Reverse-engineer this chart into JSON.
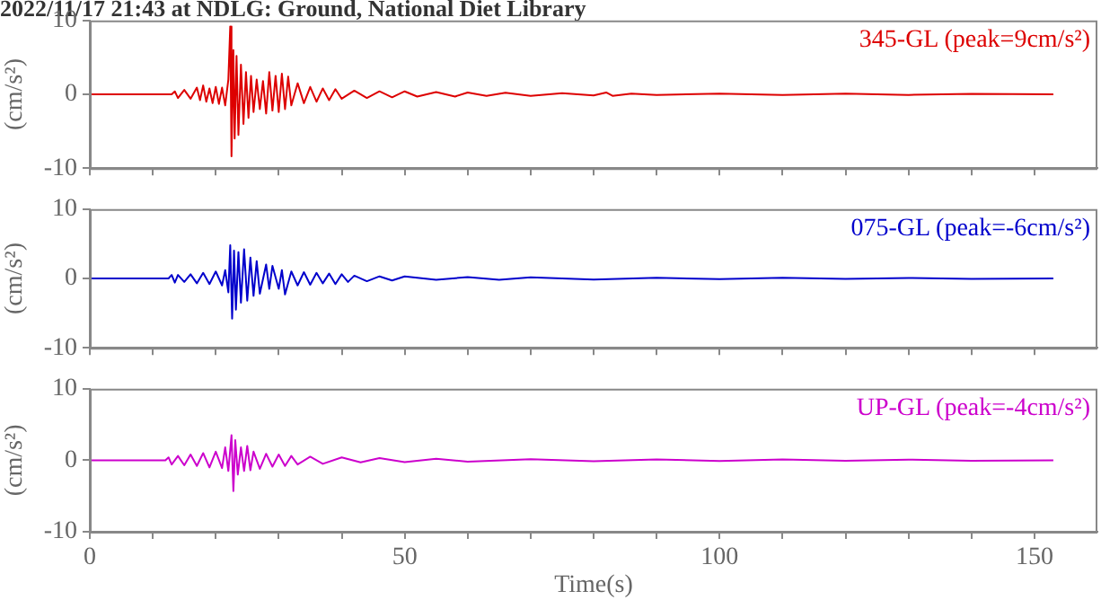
{
  "chart_data": [
    {
      "type": "line",
      "title": "2022/11/17 21:43 at NDLG: Ground, National Diet Library",
      "ylabel": "(cm/s²)",
      "xlim": [
        0,
        160
      ],
      "ylim": [
        -10,
        10
      ],
      "yticks": [
        10,
        0,
        -10
      ],
      "tick_labels": "y",
      "xticks": [
        0,
        {
          "value": 10,
          "label": null
        },
        {
          "value": 20,
          "label": null
        },
        {
          "value": 30,
          "label": null
        },
        {
          "value": 40,
          "label": null
        },
        50,
        {
          "value": 60,
          "label": null
        },
        {
          "value": 70,
          "label": null
        },
        {
          "value": 80,
          "label": null
        },
        {
          "value": 90,
          "label": null
        },
        100,
        {
          "value": 110,
          "label": null
        },
        {
          "value": 120,
          "label": null
        },
        {
          "value": 130,
          "label": null
        },
        {
          "value": 140,
          "label": null
        },
        150
      ],
      "series": [
        {
          "name": "345-GL (peak=9cm/s²)",
          "color": "#dd0000",
          "x": [
            0,
            13,
            13.5,
            14,
            15,
            16,
            17,
            17.5,
            18,
            18.5,
            19,
            19.5,
            20,
            20.5,
            21,
            21.5,
            22,
            22.3,
            22.5,
            22.8,
            23,
            23.3,
            23.6,
            24,
            24.4,
            24.8,
            25.2,
            25.6,
            26,
            26.5,
            27,
            27.5,
            28,
            28.5,
            29,
            29.5,
            30,
            30.5,
            31,
            31.5,
            32,
            33,
            34,
            35,
            36,
            37,
            38,
            39,
            40,
            42,
            44,
            46,
            48,
            50,
            52,
            55,
            58,
            60,
            63,
            66,
            70,
            75,
            80,
            82,
            83,
            86,
            90,
            100,
            110,
            120,
            130,
            140,
            153
          ],
          "values": [
            0,
            0,
            0.4,
            -0.5,
            0.6,
            -0.6,
            0.9,
            -0.8,
            1.2,
            -1.0,
            0.8,
            -1.2,
            1.0,
            -1.3,
            0.9,
            -1.5,
            2,
            9.2,
            -8.4,
            6,
            -6,
            5.2,
            -5.5,
            4,
            -4,
            3,
            -3.2,
            2.5,
            -2.4,
            2,
            -2,
            1.8,
            -2.6,
            3,
            -2.2,
            2.5,
            -2.4,
            2.8,
            -2,
            2.4,
            -1.5,
            1.5,
            -1.2,
            1.0,
            -1.0,
            0.8,
            -0.8,
            0.7,
            -0.6,
            0.5,
            -0.5,
            0.4,
            -0.4,
            0.4,
            -0.3,
            0.3,
            -0.3,
            0.25,
            -0.2,
            0.2,
            -0.2,
            0.15,
            -0.15,
            0.25,
            -0.2,
            0.1,
            -0.1,
            0.1,
            -0.1,
            0.08,
            -0.08,
            0.07,
            0
          ]
        }
      ]
    },
    {
      "type": "line",
      "ylabel": "(cm/s²)",
      "xlim": [
        0,
        160
      ],
      "ylim": [
        -10,
        10
      ],
      "yticks": [
        10,
        0,
        -10
      ],
      "tick_labels": "y",
      "xticks": [
        0,
        {
          "value": 10,
          "label": null
        },
        {
          "value": 20,
          "label": null
        },
        {
          "value": 30,
          "label": null
        },
        {
          "value": 40,
          "label": null
        },
        50,
        {
          "value": 60,
          "label": null
        },
        {
          "value": 70,
          "label": null
        },
        {
          "value": 80,
          "label": null
        },
        {
          "value": 90,
          "label": null
        },
        100,
        {
          "value": 110,
          "label": null
        },
        {
          "value": 120,
          "label": null
        },
        {
          "value": 130,
          "label": null
        },
        {
          "value": 140,
          "label": null
        },
        150
      ],
      "series": [
        {
          "name": "075-GL (peak=-6cm/s²)",
          "color": "#0000cc",
          "x": [
            0,
            12.5,
            13,
            13.5,
            14,
            15,
            16,
            17,
            18,
            19,
            20,
            21,
            21.5,
            22,
            22.3,
            22.6,
            22.9,
            23.2,
            23.6,
            24,
            24.5,
            25,
            25.5,
            26,
            26.5,
            27,
            28,
            28.5,
            29,
            30,
            30.5,
            31,
            32,
            33,
            34,
            35,
            36,
            37,
            38,
            39,
            40,
            41,
            42,
            44,
            46,
            48,
            50,
            55,
            60,
            65,
            70,
            80,
            90,
            100,
            110,
            120,
            130,
            140,
            153
          ],
          "values": [
            0,
            0,
            0.5,
            -0.6,
            0.5,
            -0.5,
            0.6,
            -0.7,
            0.8,
            -0.8,
            1.0,
            -1.0,
            1.2,
            -2,
            4.8,
            -5.8,
            4,
            -4.5,
            3.8,
            -3.5,
            4.2,
            -3.2,
            3,
            -2.5,
            2.5,
            -2.2,
            2,
            -1.5,
            1.8,
            -1.5,
            1.2,
            -2.3,
            1,
            -1,
            0.9,
            -0.9,
            0.8,
            -0.7,
            0.7,
            -0.8,
            0.6,
            -0.5,
            0.4,
            -0.4,
            0.3,
            -0.3,
            0.3,
            -0.2,
            0.2,
            -0.2,
            0.15,
            -0.15,
            0.1,
            -0.1,
            0.1,
            -0.08,
            0.08,
            -0.07,
            0
          ]
        }
      ]
    },
    {
      "type": "line",
      "ylabel": "(cm/s²)",
      "xlabel": "Time(s)",
      "xlim": [
        0,
        160
      ],
      "ylim": [
        -10,
        10
      ],
      "yticks": [
        10,
        0,
        -10
      ],
      "xticks": [
        0,
        {
          "value": 10,
          "label": null
        },
        {
          "value": 20,
          "label": null
        },
        {
          "value": 30,
          "label": null
        },
        {
          "value": 40,
          "label": null
        },
        50,
        {
          "value": 60,
          "label": null
        },
        {
          "value": 70,
          "label": null
        },
        {
          "value": 80,
          "label": null
        },
        {
          "value": 90,
          "label": null
        },
        100,
        {
          "value": 110,
          "label": null
        },
        {
          "value": 120,
          "label": null
        },
        {
          "value": 130,
          "label": null
        },
        {
          "value": 140,
          "label": null
        },
        150
      ],
      "series": [
        {
          "name": "UP-GL (peak=-4cm/s²)",
          "color": "#cc00cc",
          "x": [
            0,
            12,
            12.5,
            13,
            14,
            15,
            16,
            17,
            18,
            19,
            20,
            21,
            21.5,
            22,
            22.5,
            22.8,
            23.1,
            23.5,
            24,
            24.5,
            25,
            25.5,
            26,
            27,
            28,
            29,
            30,
            31,
            32,
            33,
            35,
            37,
            40,
            43,
            46,
            50,
            55,
            60,
            70,
            80,
            90,
            100,
            110,
            120,
            130,
            140,
            153
          ],
          "values": [
            0,
            0,
            0.4,
            -0.6,
            0.6,
            -0.7,
            0.8,
            -0.8,
            1.0,
            -1.0,
            1.2,
            -1.1,
            1.8,
            -1.5,
            3.5,
            -4.3,
            2.8,
            -2,
            1.8,
            -1.5,
            2,
            -1.4,
            1.2,
            -1.2,
            0.9,
            -0.9,
            0.8,
            -0.8,
            0.6,
            -0.6,
            0.5,
            -0.5,
            0.4,
            -0.3,
            0.3,
            -0.25,
            0.2,
            -0.2,
            0.15,
            -0.15,
            0.1,
            -0.1,
            0.1,
            -0.08,
            0.08,
            -0.07,
            0
          ]
        }
      ]
    }
  ]
}
